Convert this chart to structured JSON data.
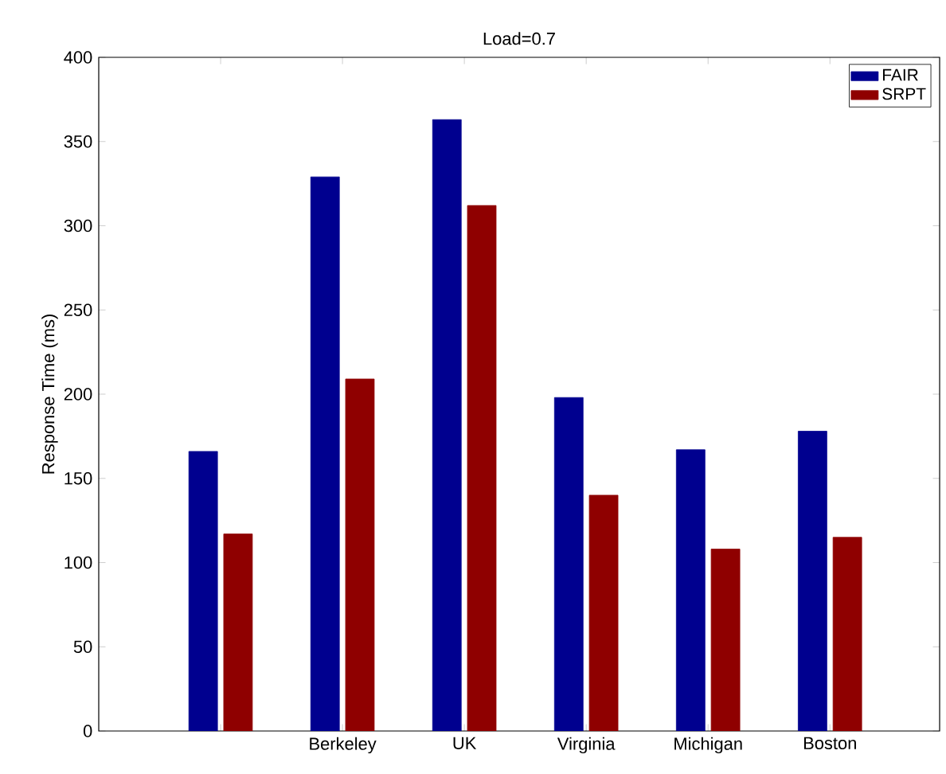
{
  "chart_data": {
    "type": "bar",
    "title": "Load=0.7",
    "ylabel": "Response Time (ms)",
    "categories": [
      null,
      "Berkeley",
      "UK",
      "Virginia",
      "Michigan",
      "Boston"
    ],
    "series": [
      {
        "name": "FAIR",
        "color": "#00008f",
        "values": [
          166,
          329,
          363,
          198,
          167,
          178
        ]
      },
      {
        "name": "SRPT",
        "color": "#8f0000",
        "values": [
          117,
          209,
          312,
          140,
          108,
          115
        ]
      }
    ],
    "ylim": [
      0,
      400
    ],
    "yticks": [
      0,
      50,
      100,
      150,
      200,
      250,
      300,
      350,
      400
    ],
    "legend": "top right",
    "grid": false
  }
}
